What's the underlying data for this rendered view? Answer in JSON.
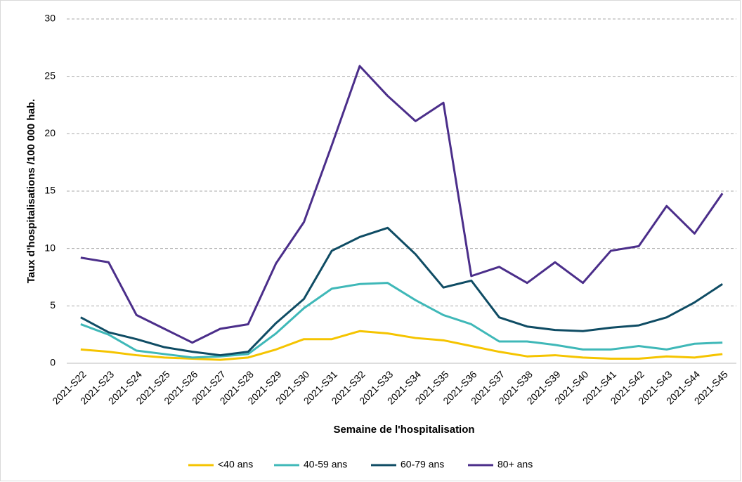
{
  "chart_data": {
    "type": "line",
    "y_label": "Taux d'hospitalisations  /100 000 hab.",
    "x_label": "Semaine de l'hospitalisation",
    "categories": [
      "2021-S22",
      "2021-S23",
      "2021-S24",
      "2021-S25",
      "2021-S26",
      "2021-S27",
      "2021-S28",
      "2021-S29",
      "2021-S30",
      "2021-S31",
      "2021-S32",
      "2021-S33",
      "2021-S34",
      "2021-S35",
      "2021-S36",
      "2021-S37",
      "2021-S38",
      "2021-S39",
      "2021-S40",
      "2021-S41",
      "2021-S42",
      "2021-S43",
      "2021-S44",
      "2021-S45"
    ],
    "series": [
      {
        "name": "<40 ans",
        "color": "#f5c400",
        "values": [
          1.2,
          1.0,
          0.7,
          0.5,
          0.4,
          0.3,
          0.5,
          1.2,
          2.1,
          2.1,
          2.8,
          2.6,
          2.2,
          2.0,
          1.5,
          1.0,
          0.6,
          0.7,
          0.5,
          0.4,
          0.4,
          0.6,
          0.5,
          0.8
        ]
      },
      {
        "name": "40-59 ans",
        "color": "#3fb8b8",
        "values": [
          3.4,
          2.5,
          1.1,
          0.8,
          0.5,
          0.6,
          0.8,
          2.6,
          4.8,
          6.5,
          6.9,
          7.0,
          5.5,
          4.2,
          3.4,
          1.9,
          1.9,
          1.6,
          1.2,
          1.2,
          1.5,
          1.2,
          1.7,
          1.8
        ]
      },
      {
        "name": "60-79 ans",
        "color": "#0f4c64",
        "values": [
          4.0,
          2.7,
          2.1,
          1.4,
          1.0,
          0.7,
          1.0,
          3.5,
          5.6,
          9.8,
          11.0,
          11.8,
          9.5,
          6.6,
          7.2,
          4.0,
          3.2,
          2.9,
          2.8,
          3.1,
          3.3,
          4.0,
          5.3,
          6.9
        ]
      },
      {
        "name": "80+ ans",
        "color": "#4b2e8a",
        "values": [
          9.2,
          8.8,
          4.2,
          3.0,
          1.8,
          3.0,
          3.4,
          8.7,
          12.3,
          19.0,
          25.9,
          23.3,
          21.1,
          22.7,
          7.6,
          8.4,
          7.0,
          8.8,
          7.0,
          9.8,
          10.2,
          13.7,
          11.3,
          14.8
        ]
      }
    ],
    "ylim": [
      0,
      30
    ],
    "yticks": [
      0,
      5,
      10,
      15,
      20,
      25,
      30
    ],
    "grid": true
  }
}
